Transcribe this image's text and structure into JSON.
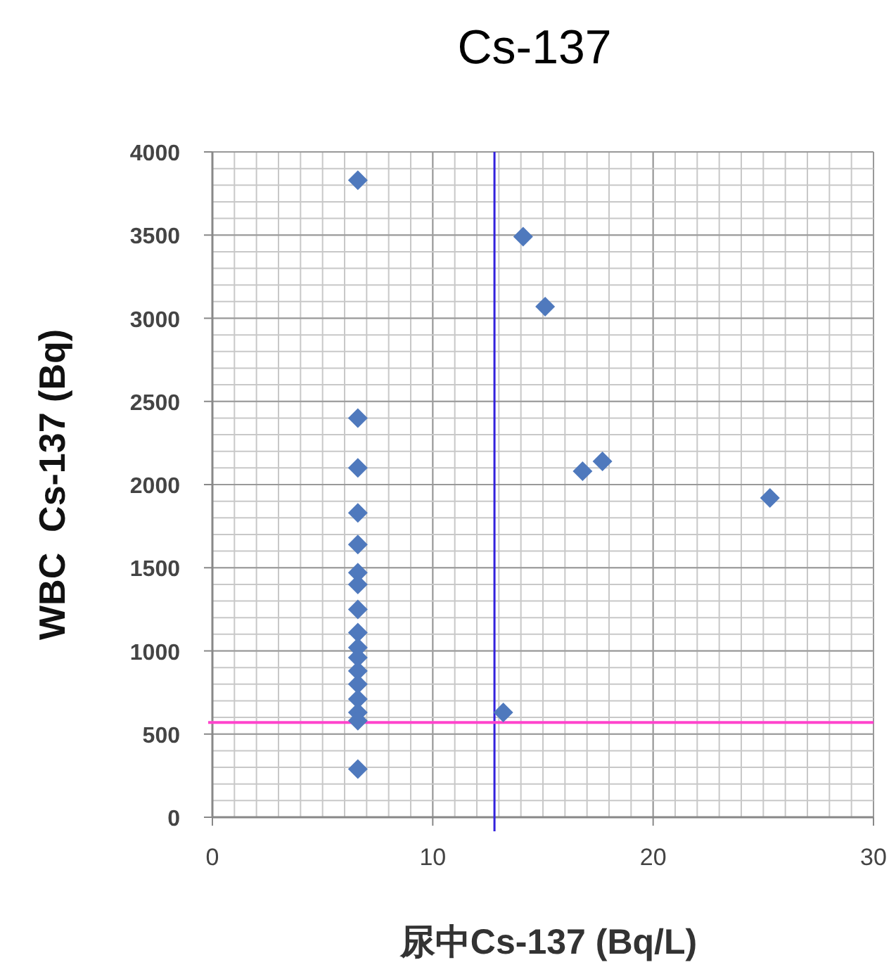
{
  "chart_data": {
    "type": "scatter",
    "title": "Cs-137",
    "xlabel": "尿中Cs-137 (Bq/L)",
    "ylabel": "WBC  Cs-137 (Bq)",
    "xlim": [
      0,
      30
    ],
    "xticks": [
      0,
      10,
      20,
      30
    ],
    "ylim": [
      0,
      4000
    ],
    "yticks": [
      0,
      500,
      1000,
      1500,
      2000,
      2500,
      3000,
      3500,
      4000
    ],
    "grid": true,
    "marker": "diamond",
    "series": [
      {
        "color": "#4f79bd",
        "x": [
          6.6,
          6.6,
          6.6,
          6.6,
          6.6,
          6.6,
          6.6,
          6.6,
          6.6,
          6.6,
          6.6,
          6.6,
          6.6,
          6.6,
          6.6,
          6.6,
          6.6,
          14.1,
          15.1,
          16.8,
          17.7,
          25.3,
          13.2
        ],
        "values": [
          3830,
          2400,
          2100,
          1830,
          1640,
          1470,
          1400,
          1250,
          1110,
          1020,
          960,
          880,
          800,
          710,
          630,
          580,
          290,
          3490,
          3070,
          2080,
          2140,
          1920,
          630
        ]
      }
    ],
    "ref_lines": [
      {
        "axis": "x",
        "value": 12.8,
        "color": "#3322dd"
      },
      {
        "axis": "y",
        "value": 570,
        "color": "#ff44cc"
      }
    ]
  }
}
